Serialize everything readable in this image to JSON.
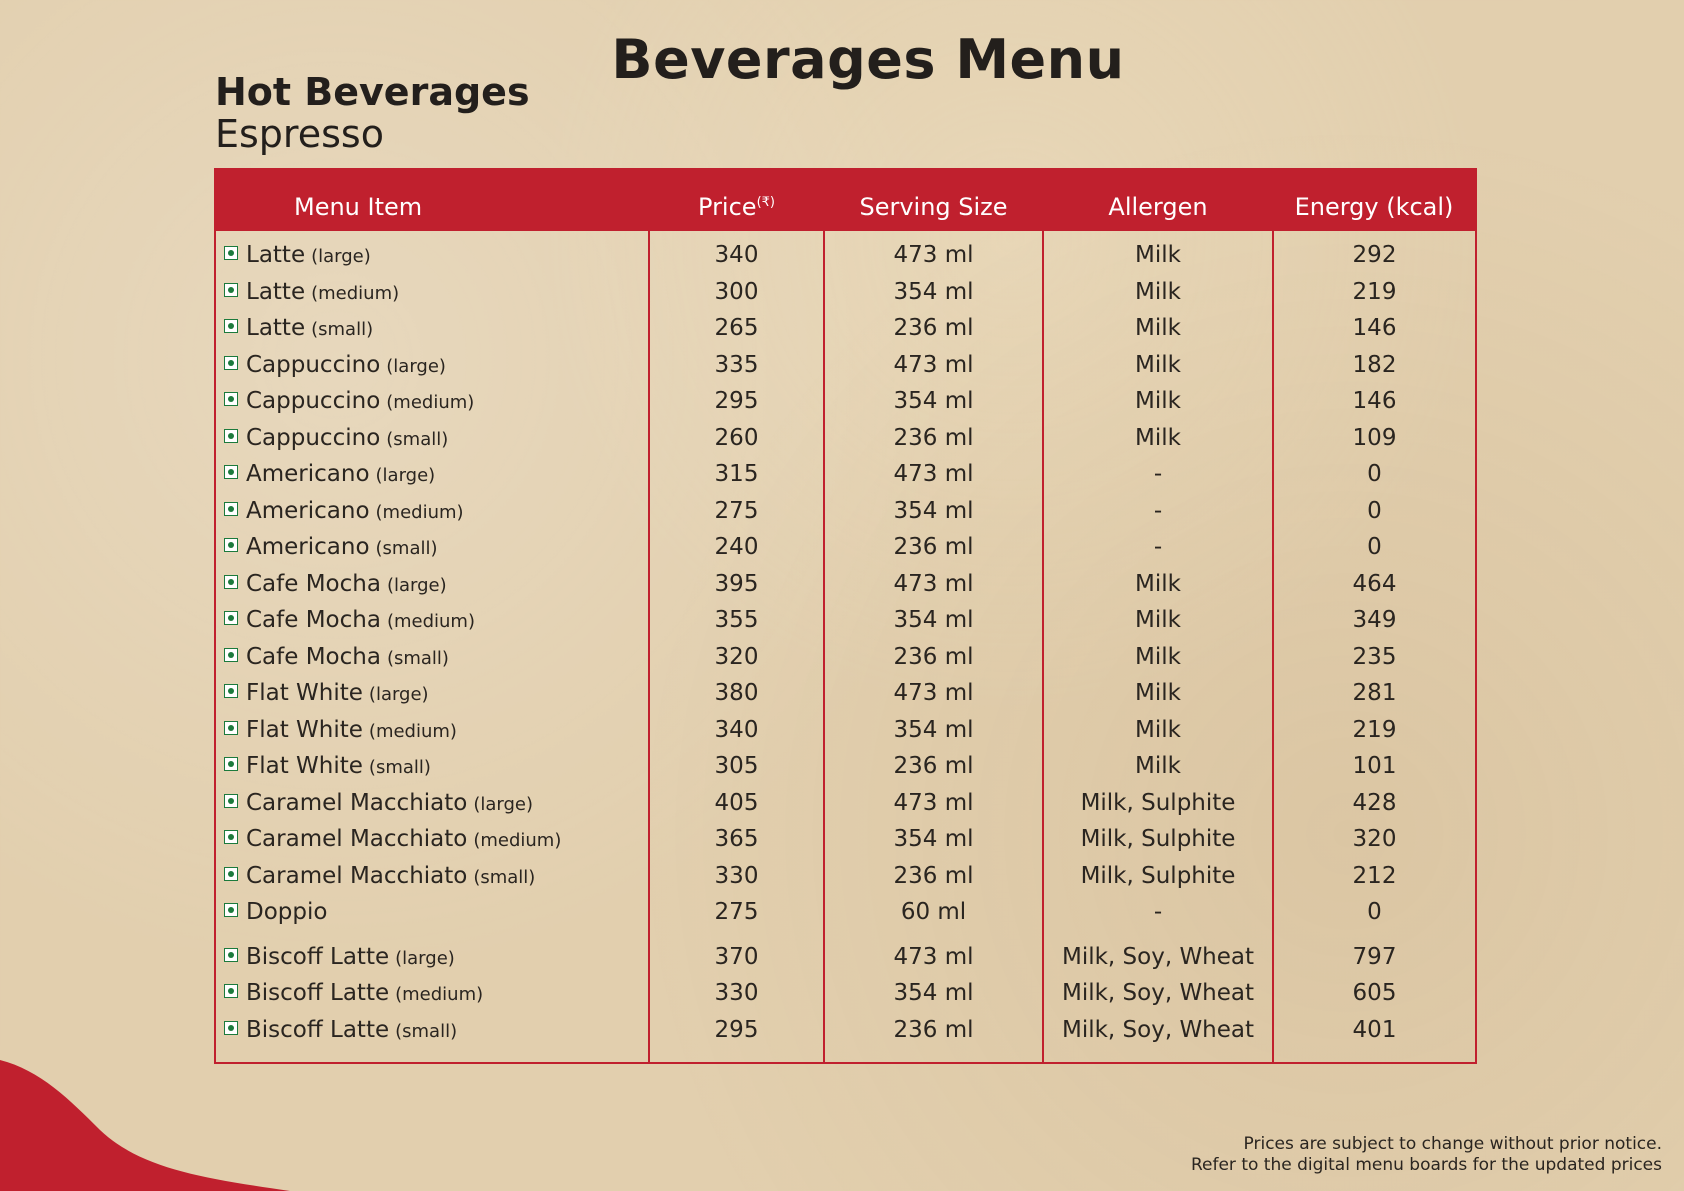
{
  "title": "Beverages Menu",
  "section": "Hot Beverages",
  "subsection": "Espresso",
  "columns": {
    "item": "Menu Item",
    "price": "Price",
    "currency": "(₹)",
    "serving": "Serving Size",
    "allergen": "Allergen",
    "energy": "Energy (kcal)"
  },
  "accent_color": "#c0202e",
  "veg_icon_color": "#1c7a3c",
  "rows": [
    {
      "name": "Latte",
      "size": "(large)",
      "price": "340",
      "serving": "473 ml",
      "allergen": "Milk",
      "energy": "292"
    },
    {
      "name": "Latte",
      "size": "(medium)",
      "price": "300",
      "serving": "354 ml",
      "allergen": "Milk",
      "energy": "219"
    },
    {
      "name": "Latte",
      "size": "(small)",
      "price": "265",
      "serving": "236 ml",
      "allergen": "Milk",
      "energy": "146"
    },
    {
      "name": "Cappuccino",
      "size": "(large)",
      "price": "335",
      "serving": "473 ml",
      "allergen": "Milk",
      "energy": "182"
    },
    {
      "name": "Cappuccino",
      "size": "(medium)",
      "price": "295",
      "serving": "354 ml",
      "allergen": "Milk",
      "energy": "146"
    },
    {
      "name": "Cappuccino",
      "size": "(small)",
      "price": "260",
      "serving": "236 ml",
      "allergen": "Milk",
      "energy": "109"
    },
    {
      "name": "Americano",
      "size": "(large)",
      "price": "315",
      "serving": "473 ml",
      "allergen": "-",
      "energy": "0"
    },
    {
      "name": "Americano",
      "size": "(medium)",
      "price": "275",
      "serving": "354 ml",
      "allergen": "-",
      "energy": "0"
    },
    {
      "name": "Americano",
      "size": "(small)",
      "price": "240",
      "serving": "236 ml",
      "allergen": "-",
      "energy": "0"
    },
    {
      "name": "Cafe Mocha",
      "size": "(large)",
      "price": "395",
      "serving": "473 ml",
      "allergen": "Milk",
      "energy": "464"
    },
    {
      "name": "Cafe Mocha",
      "size": "(medium)",
      "price": "355",
      "serving": "354 ml",
      "allergen": "Milk",
      "energy": "349"
    },
    {
      "name": "Cafe Mocha",
      "size": "(small)",
      "price": "320",
      "serving": "236 ml",
      "allergen": "Milk",
      "energy": "235"
    },
    {
      "name": "Flat White",
      "size": "(large)",
      "price": "380",
      "serving": "473 ml",
      "allergen": "Milk",
      "energy": "281"
    },
    {
      "name": "Flat White",
      "size": "(medium)",
      "price": "340",
      "serving": "354 ml",
      "allergen": "Milk",
      "energy": "219"
    },
    {
      "name": "Flat White",
      "size": "(small)",
      "price": "305",
      "serving": "236 ml",
      "allergen": "Milk",
      "energy": "101"
    },
    {
      "name": "Caramel Macchiato",
      "size": "(large)",
      "price": "405",
      "serving": "473 ml",
      "allergen": "Milk, Sulphite",
      "energy": "428"
    },
    {
      "name": "Caramel Macchiato",
      "size": "(medium)",
      "price": "365",
      "serving": "354 ml",
      "allergen": "Milk, Sulphite",
      "energy": "320"
    },
    {
      "name": "Caramel Macchiato",
      "size": "(small)",
      "price": "330",
      "serving": "236 ml",
      "allergen": "Milk, Sulphite",
      "energy": "212"
    },
    {
      "name": "Doppio",
      "size": "",
      "price": "275",
      "serving": "60 ml",
      "allergen": "-",
      "energy": "0"
    },
    {
      "name": "Biscoff Latte",
      "size": "(large)",
      "price": "370",
      "serving": "473 ml",
      "allergen": "Milk, Soy, Wheat",
      "energy": "797"
    },
    {
      "name": "Biscoff Latte",
      "size": "(medium)",
      "price": "330",
      "serving": "354 ml",
      "allergen": "Milk, Soy, Wheat",
      "energy": "605"
    },
    {
      "name": "Biscoff Latte",
      "size": "(small)",
      "price": "295",
      "serving": "236 ml",
      "allergen": "Milk, Soy, Wheat",
      "energy": "401"
    }
  ],
  "notes": [
    "Prices are subject to change without prior notice.",
    "Refer to the digital menu boards for the updated prices"
  ]
}
